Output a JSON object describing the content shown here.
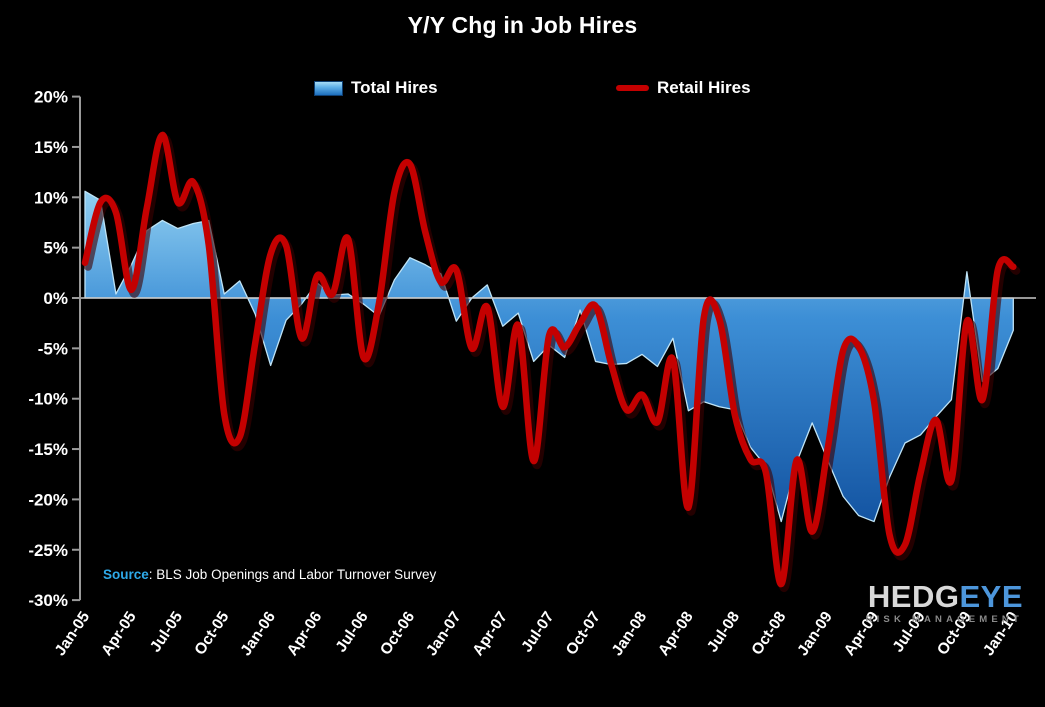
{
  "title": "Y/Y Chg in Job Hires",
  "legend": {
    "total": {
      "label": "Total Hires",
      "swatch": "blue-gradient-rect"
    },
    "retail": {
      "label": "Retail Hires",
      "swatch": "red-line"
    }
  },
  "source": {
    "label": "Source",
    "text": ": BLS Job Openings and Labor Turnover Survey"
  },
  "logo": {
    "part1": "HEDG",
    "part2": "EYE",
    "subtitle": "RISK MANAGEMENT"
  },
  "colors": {
    "background": "#000000",
    "title_text": "#ffffff",
    "axis": "#9a9a9a",
    "zero_line": "#c9c9c9",
    "tick_text": "#ffffff",
    "area_top": "#93d1f2",
    "area_mid": "#3d8fd6",
    "area_bottom": "#1252a0",
    "area_edge": "#bfe4f7",
    "line_red": "#c40000",
    "source_accent": "#2ea9e8",
    "logo_blue": "#4d96db"
  },
  "chart_data": {
    "type": "area",
    "title": "Y/Y Chg in Job Hires",
    "xlabel": "",
    "ylabel": "",
    "ylim": [
      -30,
      20
    ],
    "grid": "zero-line-only",
    "legend_position": "top",
    "y_ticks": [
      {
        "value": 20,
        "label": "20%"
      },
      {
        "value": 15,
        "label": "15%"
      },
      {
        "value": 10,
        "label": "10%"
      },
      {
        "value": 5,
        "label": "5%"
      },
      {
        "value": 0,
        "label": "0%"
      },
      {
        "value": -5,
        "label": "-5%"
      },
      {
        "value": -10,
        "label": "-10%"
      },
      {
        "value": -15,
        "label": "-15%"
      },
      {
        "value": -20,
        "label": "-20%"
      },
      {
        "value": -25,
        "label": "-25%"
      },
      {
        "value": -30,
        "label": "-30%"
      }
    ],
    "x": [
      "Jan-05",
      "Feb-05",
      "Mar-05",
      "Apr-05",
      "May-05",
      "Jun-05",
      "Jul-05",
      "Aug-05",
      "Sep-05",
      "Oct-05",
      "Nov-05",
      "Dec-05",
      "Jan-06",
      "Feb-06",
      "Mar-06",
      "Apr-06",
      "May-06",
      "Jun-06",
      "Jul-06",
      "Aug-06",
      "Sep-06",
      "Oct-06",
      "Nov-06",
      "Dec-06",
      "Jan-07",
      "Feb-07",
      "Mar-07",
      "Apr-07",
      "May-07",
      "Jun-07",
      "Jul-07",
      "Aug-07",
      "Sep-07",
      "Oct-07",
      "Nov-07",
      "Dec-07",
      "Jan-08",
      "Feb-08",
      "Mar-08",
      "Apr-08",
      "May-08",
      "Jun-08",
      "Jul-08",
      "Aug-08",
      "Sep-08",
      "Oct-08",
      "Nov-08",
      "Dec-08",
      "Jan-09",
      "Feb-09",
      "Mar-09",
      "Apr-09",
      "May-09",
      "Jun-09",
      "Jul-09",
      "Aug-09",
      "Sep-09",
      "Oct-09",
      "Nov-09",
      "Dec-09",
      "Jan-10"
    ],
    "x_tick_every": 3,
    "x_tick_labels": [
      "Jan-05",
      "Apr-05",
      "Jul-05",
      "Oct-05",
      "Jan-06",
      "Apr-06",
      "Jul-06",
      "Oct-06",
      "Jan-07",
      "Apr-07",
      "Jul-07",
      "Oct-07",
      "Jan-08",
      "Apr-08",
      "Jul-08",
      "Oct-08",
      "Jan-09",
      "Apr-09",
      "Jul-09",
      "Oct-09",
      "Jan-10"
    ],
    "series": [
      {
        "name": "Total Hires",
        "type": "area",
        "values": [
          10.6,
          9.7,
          0.4,
          3.3,
          6.7,
          7.7,
          6.9,
          7.4,
          7.7,
          0.4,
          1.7,
          -1.6,
          -6.7,
          -2.2,
          -0.6,
          1.5,
          0.3,
          0.4,
          -0.6,
          -1.8,
          1.8,
          4.0,
          3.3,
          2.4,
          -2.3,
          0.0,
          1.3,
          -2.8,
          -1.5,
          -6.3,
          -4.7,
          -5.9,
          -1.2,
          -6.3,
          -6.6,
          -6.5,
          -5.6,
          -6.8,
          -4.0,
          -11.2,
          -10.3,
          -10.8,
          -11.1,
          -14.8,
          -16.7,
          -22.2,
          -16.3,
          -12.4,
          -16.1,
          -19.7,
          -21.6,
          -22.2,
          -17.8,
          -14.4,
          -13.6,
          -11.8,
          -10.1,
          2.6,
          -8.3,
          -7.0,
          -3.2
        ]
      },
      {
        "name": "Retail Hires",
        "type": "line",
        "smooth": true,
        "values": [
          3.5,
          9.5,
          8.5,
          0.8,
          9.0,
          16.2,
          9.5,
          11.5,
          5.2,
          -11.5,
          -13.8,
          -4.5,
          4.4,
          5.2,
          -4.0,
          2.2,
          0.4,
          5.9,
          -5.9,
          -0.5,
          10.5,
          13.3,
          6.5,
          1.6,
          2.8,
          -5.0,
          -0.9,
          -10.8,
          -2.7,
          -16.2,
          -3.7,
          -4.9,
          -2.5,
          -0.8,
          -6.5,
          -11.1,
          -9.6,
          -12.3,
          -6.1,
          -20.8,
          -1.9,
          -2.1,
          -11.6,
          -16.0,
          -17.3,
          -28.4,
          -16.1,
          -23.2,
          -15.0,
          -5.2,
          -4.8,
          -10.3,
          -23.5,
          -24.5,
          -17.4,
          -12.1,
          -18.1,
          -2.3,
          -10.1,
          2.8,
          3.1
        ]
      }
    ]
  }
}
